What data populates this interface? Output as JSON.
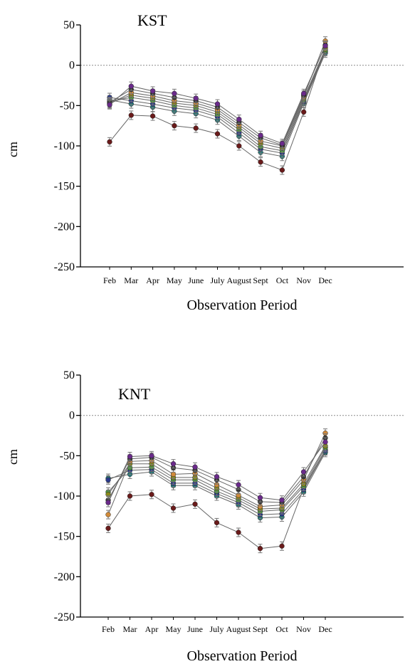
{
  "chart_data": [
    {
      "type": "line",
      "title": "KST",
      "xlabel": "Observation Period",
      "ylabel": "cm",
      "categories": [
        "Feb",
        "Mar",
        "Apr",
        "May",
        "June",
        "July",
        "August",
        "Sept",
        "Oct",
        "Nov",
        "Dec"
      ],
      "yticks": [
        "50",
        "0",
        "-50",
        "-100",
        "-150",
        "-200",
        "-250"
      ],
      "ylim": [
        -250,
        50
      ],
      "reference_line": 0,
      "error_bars": true,
      "series": [
        {
          "color": "#6a1b1b",
          "values": [
            -95,
            -62,
            -63,
            -75,
            -78,
            -85,
            -100,
            -120,
            -130,
            -58,
            22
          ]
        },
        {
          "color": "#1f7a7a",
          "values": [
            -43,
            -48,
            -52,
            -57,
            -60,
            -68,
            -88,
            -108,
            -113,
            -47,
            15
          ]
        },
        {
          "color": "#2b3a8c",
          "values": [
            -40,
            -44,
            -48,
            -53,
            -56,
            -64,
            -84,
            -104,
            -109,
            -45,
            17
          ]
        },
        {
          "color": "#4a9a3a",
          "values": [
            -45,
            -40,
            -44,
            -50,
            -53,
            -61,
            -80,
            -101,
            -106,
            -43,
            18
          ]
        },
        {
          "color": "#8a8a1a",
          "values": [
            -47,
            -37,
            -41,
            -47,
            -50,
            -58,
            -77,
            -97,
            -103,
            -41,
            20
          ]
        },
        {
          "color": "#d08a3a",
          "values": [
            -48,
            -34,
            -38,
            -44,
            -47,
            -55,
            -74,
            -94,
            -100,
            -39,
            30
          ]
        },
        {
          "color": "#3a3a3a",
          "values": [
            -46,
            -30,
            -35,
            -40,
            -44,
            -52,
            -71,
            -90,
            -99,
            -37,
            25
          ]
        },
        {
          "color": "#6a2a8a",
          "values": [
            -49,
            -26,
            -32,
            -35,
            -41,
            -48,
            -67,
            -87,
            -97,
            -35,
            24
          ]
        }
      ]
    },
    {
      "type": "line",
      "title": "KNT",
      "xlabel": "Observation Period",
      "ylabel": "cm",
      "categories": [
        "Feb",
        "Mar",
        "Apr",
        "May",
        "June",
        "July",
        "August",
        "Sept",
        "Oct",
        "Nov",
        "Dec"
      ],
      "yticks": [
        "50",
        "0",
        "-50",
        "-100",
        "-150",
        "-200",
        "-250"
      ],
      "ylim": [
        -250,
        50
      ],
      "reference_line": 0,
      "error_bars": true,
      "series": [
        {
          "color": "#6a1b1b",
          "values": [
            -140,
            -100,
            -98,
            -115,
            -110,
            -133,
            -145,
            -165,
            -162,
            -90,
            -43
          ]
        },
        {
          "color": "#1f7a7a",
          "values": [
            -78,
            -73,
            -70,
            -87,
            -87,
            -100,
            -111,
            -127,
            -126,
            -95,
            -46
          ]
        },
        {
          "color": "#2b3a8c",
          "values": [
            -80,
            -68,
            -67,
            -84,
            -84,
            -97,
            -108,
            -123,
            -122,
            -92,
            -44
          ]
        },
        {
          "color": "#4a9a3a",
          "values": [
            -95,
            -65,
            -64,
            -80,
            -80,
            -94,
            -105,
            -119,
            -117,
            -88,
            -40
          ]
        },
        {
          "color": "#8a8a1a",
          "values": [
            -98,
            -60,
            -60,
            -77,
            -77,
            -90,
            -102,
            -116,
            -115,
            -85,
            -38
          ]
        },
        {
          "color": "#d08a3a",
          "values": [
            -123,
            -57,
            -56,
            -73,
            -72,
            -86,
            -99,
            -113,
            -111,
            -80,
            -22
          ]
        },
        {
          "color": "#3a3a3a",
          "values": [
            -105,
            -54,
            -52,
            -65,
            -68,
            -80,
            -92,
            -107,
            -108,
            -76,
            -28
          ]
        },
        {
          "color": "#6a2a8a",
          "values": [
            -108,
            -51,
            -50,
            -60,
            -64,
            -76,
            -86,
            -102,
            -105,
            -70,
            -33
          ]
        }
      ]
    }
  ]
}
